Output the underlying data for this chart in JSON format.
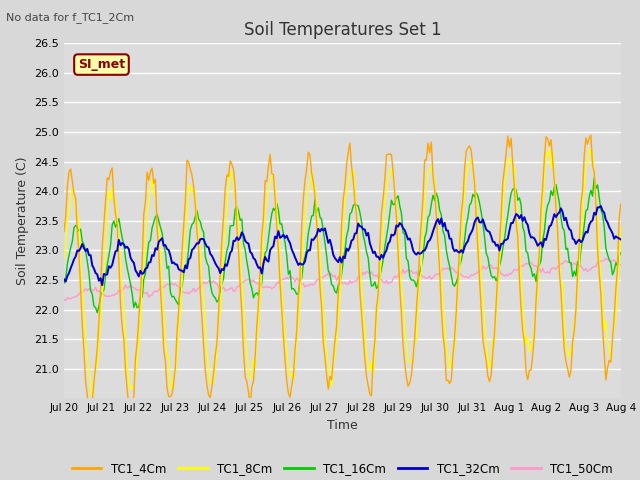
{
  "title": "Soil Temperatures Set 1",
  "xlabel": "Time",
  "ylabel": "Soil Temperature (C)",
  "top_left_note": "No data for f_TC1_2Cm",
  "annotation_label": "SI_met",
  "ylim": [
    20.5,
    26.5
  ],
  "yticks": [
    21.0,
    21.5,
    22.0,
    22.5,
    23.0,
    23.5,
    24.0,
    24.5,
    25.0,
    25.5,
    26.0,
    26.5
  ],
  "xtick_labels": [
    "Jul 20",
    "Jul 21",
    "Jul 22",
    "Jul 23",
    "Jul 24",
    "Jul 25",
    "Jul 26",
    "Jul 27",
    "Jul 28",
    "Jul 29",
    "Jul 30",
    "Jul 31",
    "Aug 1",
    "Aug 2",
    "Aug 3",
    "Aug 4"
  ],
  "line_colors": {
    "TC1_4Cm": "#FFA500",
    "TC1_8Cm": "#FFFF00",
    "TC1_16Cm": "#00CC00",
    "TC1_32Cm": "#0000CC",
    "TC1_50Cm": "#FF99CC"
  },
  "bg_color": "#D8D8D8",
  "plot_bg_color": "#DCDCDC",
  "annotation_bg": "#FFFFAA",
  "annotation_border": "#880000",
  "annotation_text_color": "#880000",
  "grid_color": "#FFFFFF",
  "n_points": 336,
  "days": 14
}
